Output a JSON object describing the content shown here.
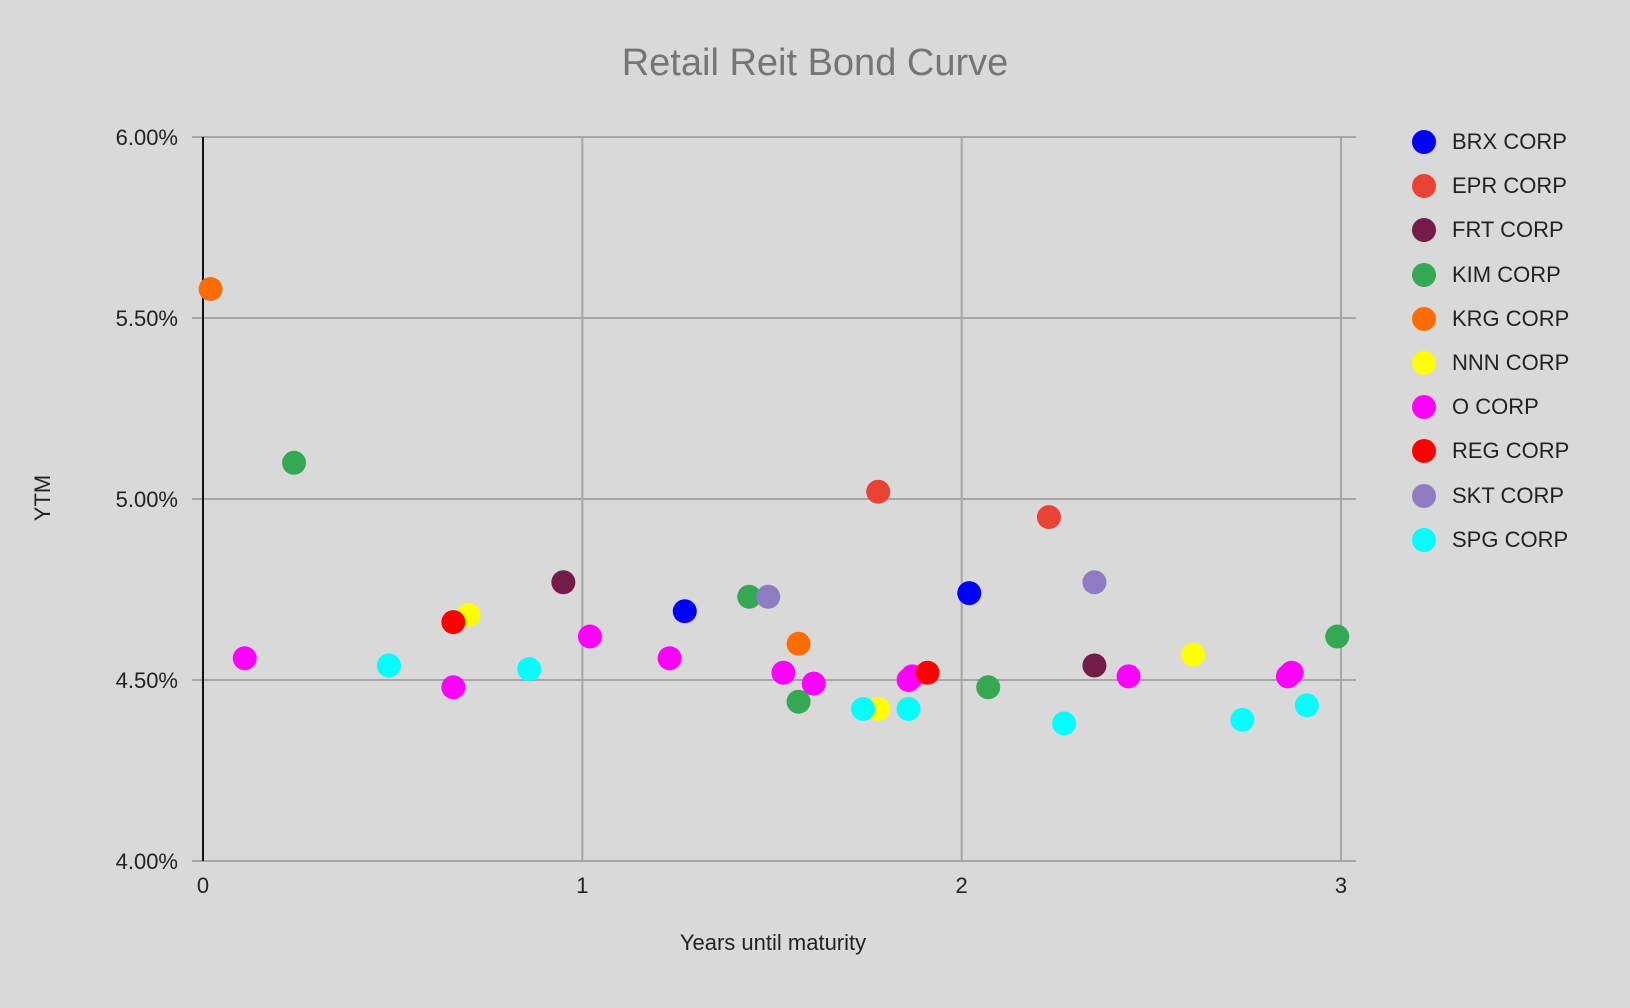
{
  "chart_data": {
    "type": "scatter",
    "title": "Retail Reit Bond Curve",
    "xlabel": "Years until maturity",
    "ylabel": "YTM",
    "xlim": [
      0,
      3
    ],
    "ylim": [
      4.0,
      6.0
    ],
    "x_ticks": [
      "0",
      "1",
      "2",
      "3"
    ],
    "y_ticks": [
      "4.00%",
      "4.50%",
      "5.00%",
      "5.50%",
      "6.00%"
    ],
    "grid": true,
    "legend_position": "right",
    "series": [
      {
        "name": "BRX CORP",
        "color": "#0000ff",
        "points": [
          [
            1.27,
            4.69
          ],
          [
            2.02,
            4.74
          ]
        ]
      },
      {
        "name": "EPR CORP",
        "color": "#ea4335",
        "points": [
          [
            1.78,
            5.02
          ],
          [
            2.23,
            4.95
          ]
        ]
      },
      {
        "name": "FRT CORP",
        "color": "#741b47",
        "points": [
          [
            0.95,
            4.77
          ],
          [
            2.35,
            4.54
          ]
        ]
      },
      {
        "name": "KIM CORP",
        "color": "#34a853",
        "points": [
          [
            0.24,
            5.1
          ],
          [
            1.44,
            4.73
          ],
          [
            1.57,
            4.44
          ],
          [
            2.07,
            4.48
          ],
          [
            2.99,
            4.62
          ]
        ]
      },
      {
        "name": "KRG CORP",
        "color": "#ff6d01",
        "points": [
          [
            0.02,
            5.58
          ],
          [
            1.57,
            4.6
          ]
        ]
      },
      {
        "name": "NNN CORP",
        "color": "#ffff00",
        "points": [
          [
            0.7,
            4.68
          ],
          [
            1.78,
            4.42
          ],
          [
            2.61,
            4.57
          ]
        ]
      },
      {
        "name": "O CORP",
        "color": "#ff00ff",
        "points": [
          [
            0.11,
            4.56
          ],
          [
            0.66,
            4.48
          ],
          [
            1.02,
            4.62
          ],
          [
            1.23,
            4.56
          ],
          [
            1.53,
            4.52
          ],
          [
            1.61,
            4.49
          ],
          [
            1.86,
            4.5
          ],
          [
            1.87,
            4.51
          ],
          [
            2.44,
            4.51
          ],
          [
            2.86,
            4.51
          ],
          [
            2.87,
            4.52
          ]
        ]
      },
      {
        "name": "REG CORP",
        "color": "#ff0000",
        "points": [
          [
            0.66,
            4.66
          ],
          [
            1.91,
            4.52
          ]
        ]
      },
      {
        "name": "SKT CORP",
        "color": "#8e7cc3",
        "points": [
          [
            1.49,
            4.73
          ],
          [
            2.35,
            4.77
          ]
        ]
      },
      {
        "name": "SPG CORP",
        "color": "#00ffff",
        "points": [
          [
            0.49,
            4.54
          ],
          [
            0.86,
            4.53
          ],
          [
            1.74,
            4.42
          ],
          [
            1.86,
            4.42
          ],
          [
            2.27,
            4.38
          ],
          [
            2.74,
            4.39
          ],
          [
            2.91,
            4.43
          ]
        ]
      }
    ]
  }
}
